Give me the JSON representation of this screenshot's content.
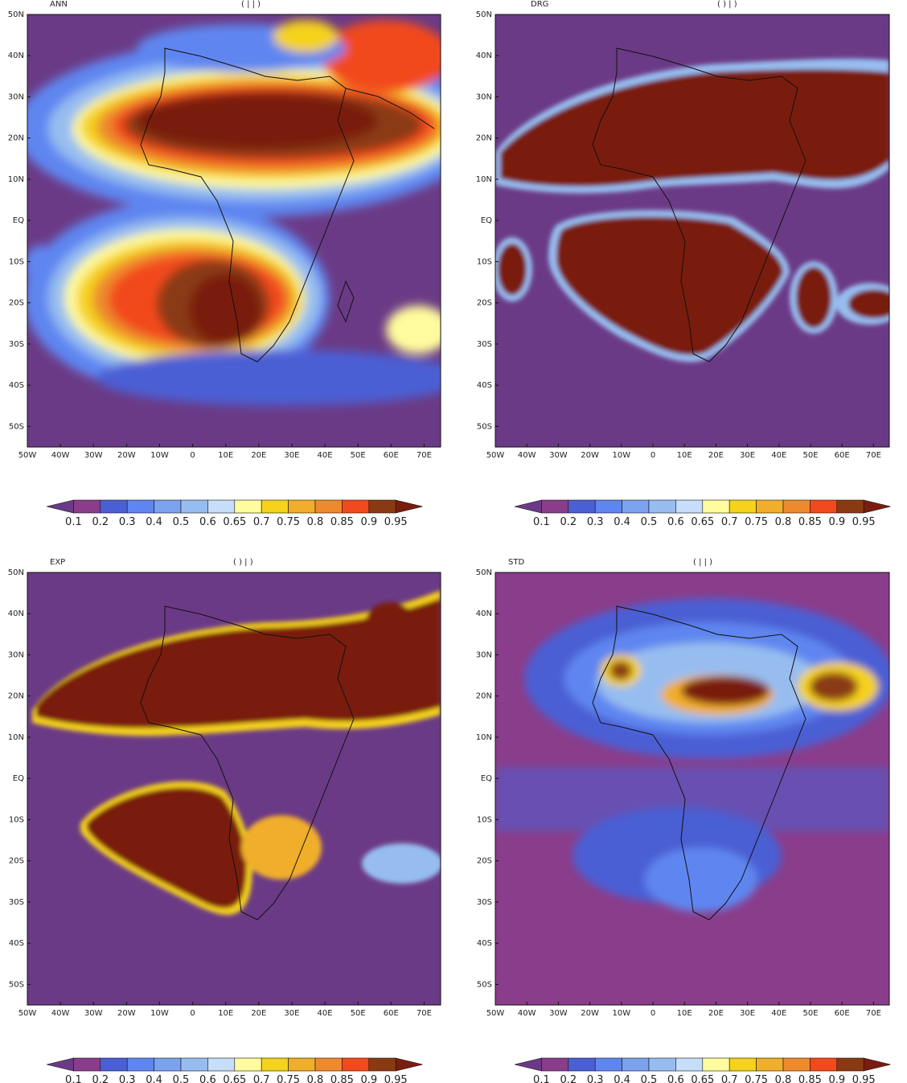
{
  "axes": {
    "lat_labels": [
      "50N",
      "40N",
      "30N",
      "20N",
      "10N",
      "EQ",
      "10S",
      "20S",
      "30S",
      "40S",
      "50S"
    ],
    "lon_labels": [
      "50W",
      "40W",
      "30W",
      "20W",
      "10W",
      "0",
      "10E",
      "20E",
      "30E",
      "40E",
      "50E",
      "60E",
      "70E"
    ]
  },
  "colorbar": {
    "labels": [
      "0.1",
      "0.2",
      "0.3",
      "0.4",
      "0.5",
      "0.6",
      "0.65",
      "0.7",
      "0.75",
      "0.8",
      "0.85",
      "0.9",
      "0.95"
    ],
    "colors": [
      "#6b3a86",
      "#8a3d8a",
      "#4b5fd4",
      "#5f86f0",
      "#7aa2ef",
      "#97bdf0",
      "#c6defa",
      "#fffb9e",
      "#f5d21c",
      "#f0ae2a",
      "#ee8a2e",
      "#f24a1c",
      "#8a3a12",
      "#7a1d0f"
    ]
  },
  "panels": [
    {
      "title_left": "ANN",
      "title_right": "(                  |          |          )"
    },
    {
      "title_left": "DRG",
      "title_right": "(                  )        |          )"
    },
    {
      "title_left": "EXP",
      "title_right": "(                  )        |          )"
    },
    {
      "title_left": "STD",
      "title_right": "(                  |          |          )"
    }
  ],
  "chart_data": {
    "type": "heatmap",
    "x_range": [
      "50W",
      "75E"
    ],
    "y_range": [
      "55S",
      "50N"
    ],
    "colorbar_levels": [
      0.1,
      0.2,
      0.3,
      0.4,
      0.5,
      0.6,
      0.65,
      0.7,
      0.75,
      0.8,
      0.85,
      0.9,
      0.95
    ],
    "panels": [
      "ANN",
      "DRG",
      "EXP",
      "STD"
    ]
  }
}
